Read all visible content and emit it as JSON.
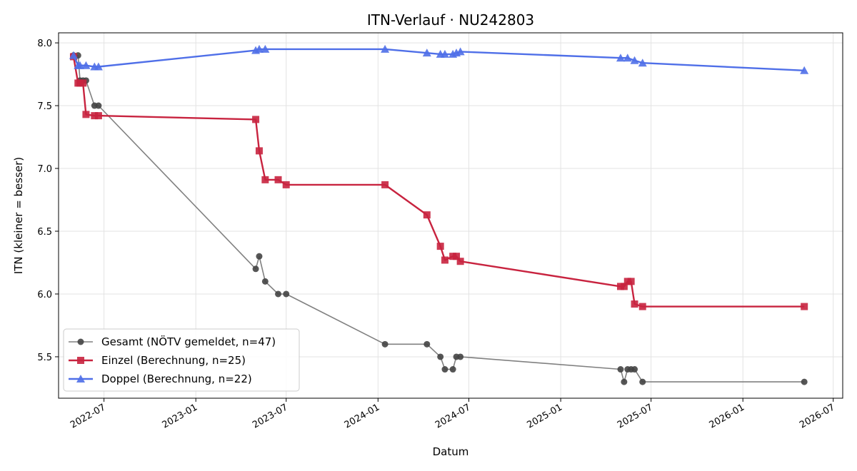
{
  "chart_data": {
    "type": "line",
    "title": "ITN-Verlauf · NU242803",
    "xlabel": "Datum",
    "ylabel": "ITN  (kleiner = besser)",
    "xlim": [
      "2022-04-01",
      "2026-07-20"
    ],
    "ylim": [
      5.17,
      8.08
    ],
    "x_ticks": [
      "2022-07-01",
      "2023-01-01",
      "2023-07-01",
      "2024-01-01",
      "2024-07-01",
      "2025-01-01",
      "2025-07-01",
      "2026-01-01",
      "2026-07-01"
    ],
    "x_tick_labels": [
      "2022-07",
      "2023-01",
      "2023-07",
      "2024-01",
      "2024-07",
      "2025-01",
      "2025-07",
      "2026-01",
      "2026-07"
    ],
    "y_ticks": [
      5.5,
      6.0,
      6.5,
      7.0,
      7.5,
      8.0
    ],
    "y_tick_labels": [
      "5.5",
      "6.0",
      "6.5",
      "7.0",
      "7.5",
      "8.0"
    ],
    "grid": true,
    "legend_position": "lower-left",
    "series": [
      {
        "name": "Gesamt (NÖTV gemeldet, n=47)",
        "color": "#444444",
        "line_color": "#808080",
        "marker": "circle",
        "points": [
          [
            "2022-05-01",
            7.9
          ],
          [
            "2022-05-10",
            7.9
          ],
          [
            "2022-05-14",
            7.7
          ],
          [
            "2022-05-20",
            7.7
          ],
          [
            "2022-05-26",
            7.7
          ],
          [
            "2022-06-12",
            7.5
          ],
          [
            "2022-06-20",
            7.5
          ],
          [
            "2023-05-01",
            6.2
          ],
          [
            "2023-05-08",
            6.3
          ],
          [
            "2023-05-20",
            6.1
          ],
          [
            "2023-06-15",
            6.0
          ],
          [
            "2023-07-01",
            6.0
          ],
          [
            "2024-01-15",
            5.6
          ],
          [
            "2024-04-08",
            5.6
          ],
          [
            "2024-05-05",
            5.5
          ],
          [
            "2024-05-14",
            5.4
          ],
          [
            "2024-05-30",
            5.4
          ],
          [
            "2024-06-06",
            5.5
          ],
          [
            "2024-06-14",
            5.5
          ],
          [
            "2025-05-01",
            5.4
          ],
          [
            "2025-05-08",
            5.3
          ],
          [
            "2025-05-15",
            5.4
          ],
          [
            "2025-05-22",
            5.4
          ],
          [
            "2025-05-29",
            5.4
          ],
          [
            "2025-06-14",
            5.3
          ],
          [
            "2026-05-04",
            5.3
          ]
        ]
      },
      {
        "name": "Einzel (Berechnung, n=25)",
        "color": "#c8233f",
        "line_color": "#c8233f",
        "marker": "square",
        "points": [
          [
            "2022-05-01",
            7.89
          ],
          [
            "2022-05-10",
            7.68
          ],
          [
            "2022-05-14",
            7.68
          ],
          [
            "2022-05-20",
            7.68
          ],
          [
            "2022-05-26",
            7.43
          ],
          [
            "2022-06-12",
            7.42
          ],
          [
            "2022-06-20",
            7.42
          ],
          [
            "2023-05-01",
            7.39
          ],
          [
            "2023-05-08",
            7.14
          ],
          [
            "2023-05-20",
            6.91
          ],
          [
            "2023-06-15",
            6.91
          ],
          [
            "2023-07-01",
            6.87
          ],
          [
            "2024-01-15",
            6.87
          ],
          [
            "2024-04-08",
            6.63
          ],
          [
            "2024-05-05",
            6.38
          ],
          [
            "2024-05-14",
            6.27
          ],
          [
            "2024-05-30",
            6.3
          ],
          [
            "2024-06-06",
            6.3
          ],
          [
            "2024-06-14",
            6.26
          ],
          [
            "2025-05-01",
            6.06
          ],
          [
            "2025-05-08",
            6.06
          ],
          [
            "2025-05-15",
            6.1
          ],
          [
            "2025-05-22",
            6.1
          ],
          [
            "2025-05-29",
            5.92
          ],
          [
            "2025-06-14",
            5.9
          ],
          [
            "2026-05-04",
            5.9
          ]
        ]
      },
      {
        "name": "Doppel (Berechnung, n=22)",
        "color": "#4f6fe8",
        "line_color": "#4f6fe8",
        "marker": "triangle",
        "points": [
          [
            "2022-05-01",
            7.9
          ],
          [
            "2022-05-10",
            7.82
          ],
          [
            "2022-05-14",
            7.82
          ],
          [
            "2022-05-26",
            7.82
          ],
          [
            "2022-06-12",
            7.81
          ],
          [
            "2022-06-20",
            7.81
          ],
          [
            "2023-05-01",
            7.94
          ],
          [
            "2023-05-08",
            7.95
          ],
          [
            "2023-05-20",
            7.95
          ],
          [
            "2024-01-15",
            7.95
          ],
          [
            "2024-04-08",
            7.92
          ],
          [
            "2024-05-05",
            7.91
          ],
          [
            "2024-05-14",
            7.91
          ],
          [
            "2024-05-30",
            7.91
          ],
          [
            "2024-06-06",
            7.92
          ],
          [
            "2024-06-14",
            7.93
          ],
          [
            "2025-05-01",
            7.88
          ],
          [
            "2025-05-15",
            7.88
          ],
          [
            "2025-05-29",
            7.86
          ],
          [
            "2025-06-14",
            7.84
          ],
          [
            "2026-05-04",
            7.78
          ]
        ]
      }
    ]
  }
}
